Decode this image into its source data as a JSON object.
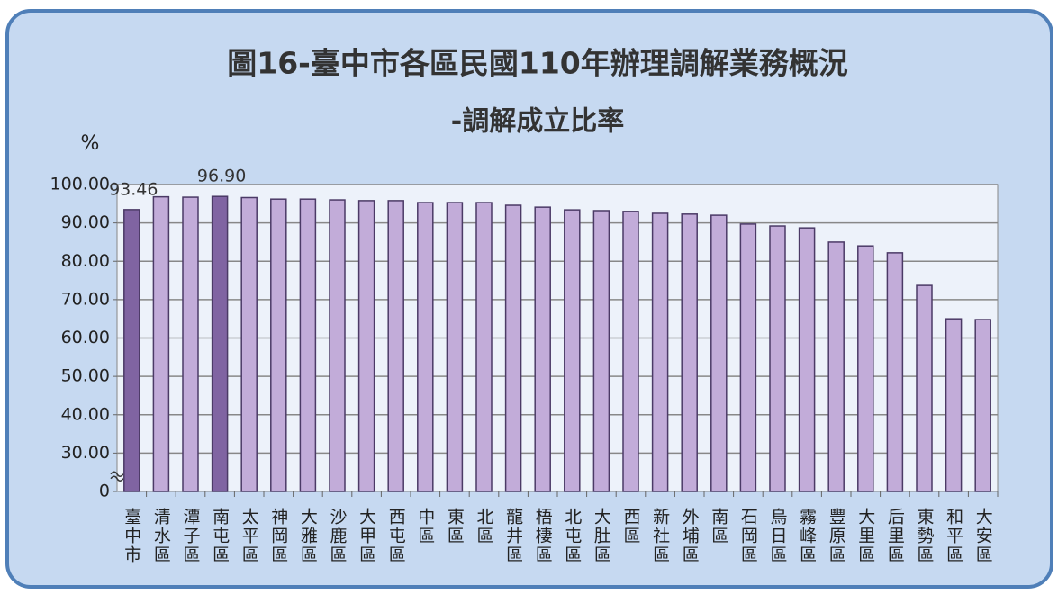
{
  "chart_data": {
    "type": "bar",
    "title": "圖16-臺中市各區民國110年辦理調解業務概況",
    "subtitle": "-調解成立比率",
    "y_label": "%",
    "categories": [
      "臺中市",
      "清水區",
      "潭子區",
      "南屯區",
      "太平區",
      "神岡區",
      "大雅區",
      "沙鹿區",
      "大甲區",
      "西屯區",
      "中區",
      "東區",
      "北區",
      "龍井區",
      "梧棲區",
      "北屯區",
      "大肚區",
      "西區",
      "新社區",
      "外埔區",
      "南區",
      "石岡區",
      "烏日區",
      "霧峰區",
      "豐原區",
      "大里區",
      "后里區",
      "東勢區",
      "和平區",
      "大安區"
    ],
    "values": [
      93.46,
      96.8,
      96.7,
      96.9,
      96.6,
      96.2,
      96.2,
      96.0,
      95.8,
      95.8,
      95.3,
      95.3,
      95.3,
      94.6,
      94.1,
      93.4,
      93.2,
      93.0,
      92.5,
      92.3,
      92.0,
      89.7,
      89.2,
      88.7,
      85.0,
      84.0,
      82.2,
      73.7,
      65.0,
      64.8
    ],
    "value_labels": [
      "93.46",
      null,
      null,
      "96.90",
      null,
      null,
      null,
      null,
      null,
      null,
      null,
      null,
      null,
      null,
      null,
      null,
      null,
      null,
      null,
      null,
      null,
      null,
      null,
      null,
      null,
      null,
      null,
      null,
      null,
      null
    ],
    "colors": [
      "#8064a2",
      "#c2acd9",
      "#c2acd9",
      "#8064a2",
      "#c2acd9",
      "#c2acd9",
      "#c2acd9",
      "#c2acd9",
      "#c2acd9",
      "#c2acd9",
      "#c2acd9",
      "#c2acd9",
      "#c2acd9",
      "#c2acd9",
      "#c2acd9",
      "#c2acd9",
      "#c2acd9",
      "#c2acd9",
      "#c2acd9",
      "#c2acd9",
      "#c2acd9",
      "#c2acd9",
      "#c2acd9",
      "#c2acd9",
      "#c2acd9",
      "#c2acd9",
      "#c2acd9",
      "#c2acd9",
      "#c2acd9",
      "#c2acd9"
    ],
    "ylim": [
      0,
      100
    ],
    "y_axis_break": true,
    "yticks": [
      0,
      {
        "value": 30,
        "label": "30.00"
      },
      {
        "value": 40,
        "label": "40.00"
      },
      {
        "value": 50,
        "label": "50.00"
      },
      {
        "value": 60,
        "label": "60.00"
      },
      {
        "value": 70,
        "label": "70.00"
      },
      {
        "value": 80,
        "label": "80.00"
      },
      {
        "value": 90,
        "label": "90.00"
      },
      {
        "value": 100,
        "label": "100.00"
      }
    ],
    "grid": true
  }
}
